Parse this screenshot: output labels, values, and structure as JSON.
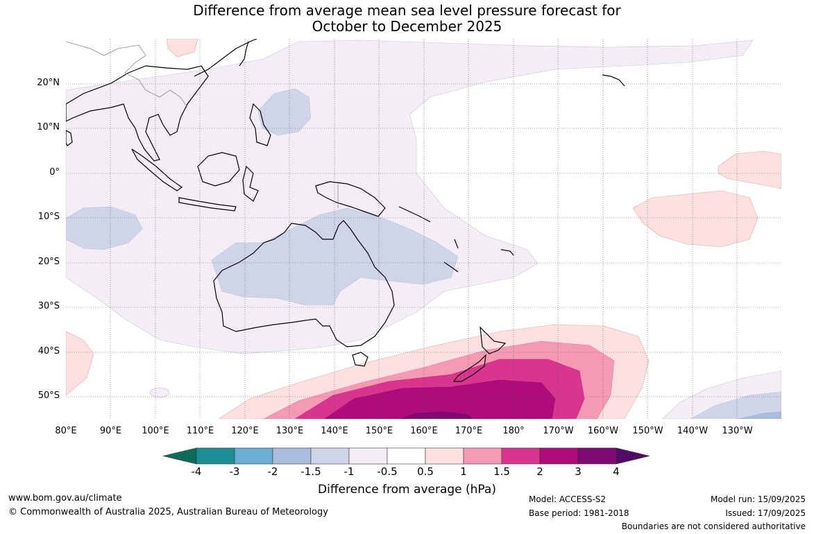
{
  "title_line1": "Difference from average mean sea level pressure forecast for",
  "title_line2": "October to December 2025",
  "lat_labels": [
    "20°N",
    "10°N",
    "0°",
    "10°S",
    "20°S",
    "30°S",
    "40°S",
    "50°S"
  ],
  "lon_labels": [
    "80°E",
    "90°E",
    "100°E",
    "110°E",
    "120°E",
    "130°E",
    "140°E",
    "150°E",
    "160°E",
    "170°E",
    "180°",
    "170°W",
    "160°W",
    "150°W",
    "140°W",
    "130°W"
  ],
  "colorbar": {
    "label": "Difference from average (hPa)",
    "ticks": [
      "-4",
      "-3",
      "-2",
      "-1.5",
      "-1",
      "-0.5",
      "0.5",
      "1",
      "1.5",
      "2",
      "3",
      "4"
    ],
    "colors": [
      "#0d6b5a",
      "#1b8f94",
      "#6aaed6",
      "#a9bedc",
      "#d0d4e8",
      "#f3edf6",
      "#ffffff",
      "#fde0e0",
      "#f59ab5",
      "#d9358f",
      "#ad0c79",
      "#7f0a72",
      "#520a64"
    ]
  },
  "footer": {
    "url": "www.bom.gov.au/climate",
    "copyright": "© Commonwealth of Australia 2025, Australian Bureau of Meteorology",
    "model": "Model: ACCESS-S2",
    "base_period": "Base period: 1981-2018",
    "model_run": "Model run: 15/09/2025",
    "issued": "Issued: 17/09/2025",
    "disclaimer": "Boundaries are not considered authoritative"
  }
}
